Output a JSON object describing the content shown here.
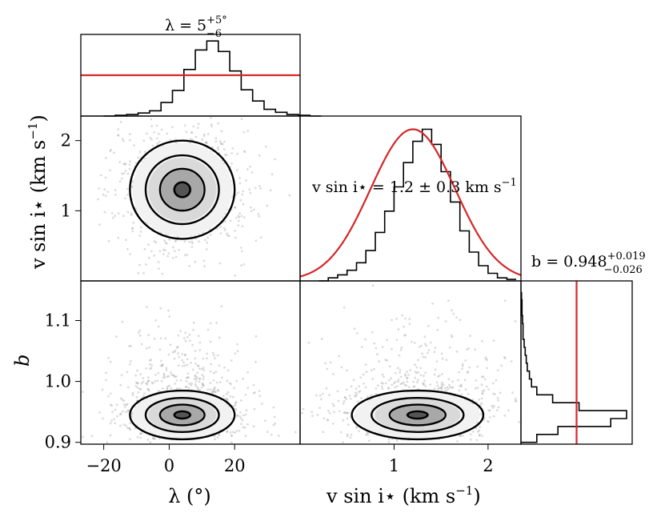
{
  "chart_data": {
    "type": "corner",
    "parameters": [
      {
        "key": "lambda",
        "axis_label": "λ (°)",
        "title": "λ = 5⁺⁵₋₆ °",
        "range": [
          -27,
          40
        ],
        "ticks": [
          -20,
          0,
          20
        ],
        "tick_labels": [
          "−20",
          "0",
          "20"
        ],
        "prior_line": {
          "kind": "uniform",
          "level": 0.5
        },
        "hist_counts": [
          0,
          0.01,
          0.02,
          0.04,
          0.07,
          0.18,
          0.34,
          0.62,
          0.88,
          1.0,
          0.86,
          0.6,
          0.35,
          0.2,
          0.09,
          0.05,
          0.02,
          0.01,
          0.0
        ],
        "hist_edges_start": -20,
        "hist_bin_width": 3.5
      },
      {
        "key": "vsini",
        "axis_label": "v sin i⋆ (km s⁻¹)",
        "title": "v sin i⋆ = 1.2 ± 0.3 km s⁻¹",
        "range": [
          0.0,
          2.35
        ],
        "ticks": [
          1,
          2
        ],
        "tick_labels": [
          "1",
          "2"
        ],
        "prior_line": {
          "kind": "gaussian",
          "mean": 1.2,
          "sigma": 0.45
        },
        "hist_counts": [
          0.0,
          0.02,
          0.04,
          0.07,
          0.12,
          0.2,
          0.32,
          0.46,
          0.62,
          0.78,
          0.92,
          1.0,
          0.9,
          0.72,
          0.52,
          0.33,
          0.19,
          0.1,
          0.05,
          0.02,
          0.01
        ],
        "hist_edges_start": 0.2,
        "hist_bin_width": 0.1
      },
      {
        "key": "b",
        "axis_label": "b",
        "title": "b = 0.948⁺⁰·⁰¹⁹₋₀.₀₂₆",
        "range": [
          0.897,
          1.165
        ],
        "ticks": [
          0.9,
          1.0,
          1.1
        ],
        "tick_labels": [
          "0.9",
          "1.0",
          "1.1"
        ],
        "prior_line": {
          "kind": "vertical",
          "value": 0.948
        },
        "hist_counts": [
          0.15,
          0.35,
          0.85,
          1.0,
          0.55,
          0.3,
          0.15,
          0.1,
          0.08,
          0.06,
          0.05,
          0.04,
          0.03,
          0.02,
          0.02,
          0.015,
          0.01,
          0.01,
          0.005
        ],
        "hist_edges_start": 0.9,
        "hist_bin_width": 0.013
      }
    ],
    "pair_panels": [
      {
        "x": "lambda",
        "y": "vsini",
        "center": [
          4,
          1.3
        ],
        "spread": [
          8,
          0.35
        ]
      },
      {
        "x": "lambda",
        "y": "b",
        "center": [
          4,
          0.945
        ],
        "spread": [
          8,
          0.02
        ]
      },
      {
        "x": "vsini",
        "y": "b",
        "center": [
          1.25,
          0.945
        ],
        "spread": [
          0.35,
          0.02
        ]
      }
    ],
    "titles": {
      "lambda": {
        "main": "λ = 5",
        "sup": "+5°",
        "sub": "−6"
      },
      "vsini": {
        "main": "v sin i⋆ = 1.2 ± 0.3 km s",
        "sup": "−1"
      },
      "b": {
        "main": "b = 0.948",
        "sup": "+0.019",
        "sub": "−0.026"
      }
    },
    "axis_labels": {
      "x_lambda": "λ (°)",
      "x_vsini": "v sin i⋆ (km s",
      "x_vsini_sup": "−1",
      "x_vsini_end": ")",
      "y_vsini": "v sin i⋆ (km s",
      "y_vsini_sup": "−1",
      "y_vsini_end": ")",
      "y_b": "b"
    },
    "colors": {
      "prior": "#d62728",
      "line": "#000000"
    }
  }
}
